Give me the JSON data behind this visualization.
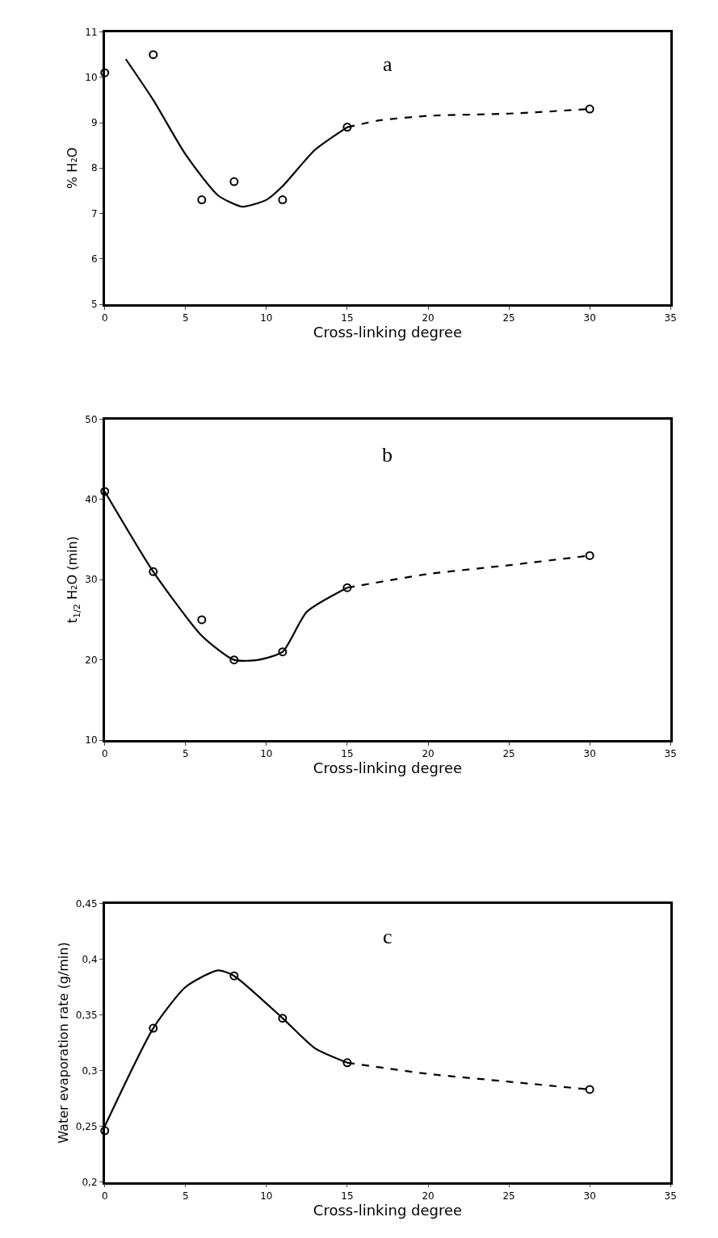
{
  "chart_data": [
    {
      "type": "scatter",
      "title": "a",
      "xlabel": "Cross-linking degree",
      "ylabel": "% H₂O",
      "xlim": [
        0,
        35
      ],
      "ylim": [
        5,
        11
      ],
      "xticks": [
        0,
        5,
        10,
        15,
        20,
        25,
        30,
        35
      ],
      "yticks": [
        5,
        6,
        7,
        8,
        9,
        10,
        11
      ],
      "series": [
        {
          "marker": "circle",
          "color": "#000000",
          "x": [
            0,
            3,
            6,
            8,
            11,
            15,
            30
          ],
          "values": [
            10.1,
            10.5,
            7.3,
            7.7,
            7.3,
            8.9,
            9.3
          ]
        },
        {
          "type": "line",
          "marker": "none",
          "line_style": "solid",
          "color": "#000000",
          "x": [
            1.3,
            3,
            5,
            7,
            8.5,
            10,
            11,
            13,
            15
          ],
          "values": [
            10.4,
            9.5,
            8.3,
            7.4,
            7.15,
            7.3,
            7.6,
            8.4,
            8.9
          ]
        },
        {
          "type": "line",
          "marker": "none",
          "line_style": "dashed",
          "color": "#000000",
          "x": [
            15,
            17,
            20,
            25,
            30
          ],
          "values": [
            8.9,
            9.05,
            9.15,
            9.2,
            9.3
          ]
        }
      ]
    },
    {
      "type": "scatter",
      "title": "b",
      "xlabel": "Cross-linking degree",
      "ylabel": "t$_{1/2}$ H₂O (min)",
      "xlim": [
        0,
        35
      ],
      "ylim": [
        10,
        50
      ],
      "xticks": [
        0,
        5,
        10,
        15,
        20,
        25,
        30,
        35
      ],
      "yticks": [
        10,
        20,
        30,
        40,
        50
      ],
      "series": [
        {
          "marker": "circle",
          "color": "#000000",
          "x": [
            0,
            3,
            6,
            8,
            11,
            15,
            30
          ],
          "values": [
            41,
            31,
            25,
            20,
            21,
            29,
            33
          ]
        },
        {
          "type": "line",
          "marker": "none",
          "line_style": "solid",
          "color": "#000000",
          "x": [
            0,
            3,
            6,
            8,
            9.5,
            11,
            12.5,
            15
          ],
          "values": [
            41,
            31,
            23,
            20,
            20,
            21,
            26,
            29
          ]
        },
        {
          "type": "line",
          "marker": "none",
          "line_style": "dashed",
          "color": "#000000",
          "x": [
            15,
            20,
            25,
            30
          ],
          "values": [
            29,
            30.7,
            31.8,
            33
          ]
        }
      ]
    },
    {
      "type": "scatter",
      "title": "c",
      "xlabel": "Cross-linking degree",
      "ylabel": "Water evaporation rate (g/min)",
      "xlim": [
        0,
        35
      ],
      "ylim": [
        0.2,
        0.45
      ],
      "xticks": [
        0,
        5,
        10,
        15,
        20,
        25,
        30,
        35
      ],
      "yticks": [
        {
          "value": 0.2,
          "label": "0,2"
        },
        {
          "value": 0.25,
          "label": "0,25"
        },
        {
          "value": 0.3,
          "label": "0,3"
        },
        {
          "value": 0.35,
          "label": "0,35"
        },
        {
          "value": 0.4,
          "label": "0,4"
        },
        {
          "value": 0.45,
          "label": "0,45"
        }
      ],
      "series": [
        {
          "marker": "circle",
          "color": "#000000",
          "x": [
            0,
            3,
            8,
            11,
            15,
            30
          ],
          "values": [
            0.246,
            0.338,
            0.385,
            0.347,
            0.307,
            0.283
          ]
        },
        {
          "type": "line",
          "marker": "none",
          "line_style": "solid",
          "color": "#000000",
          "x": [
            0,
            3,
            5,
            7,
            8,
            11,
            13,
            15
          ],
          "values": [
            0.25,
            0.338,
            0.375,
            0.39,
            0.385,
            0.347,
            0.32,
            0.307
          ]
        },
        {
          "type": "line",
          "marker": "none",
          "line_style": "dashed",
          "color": "#000000",
          "x": [
            15,
            20,
            25,
            30
          ],
          "values": [
            0.307,
            0.297,
            0.29,
            0.283
          ]
        }
      ]
    }
  ]
}
